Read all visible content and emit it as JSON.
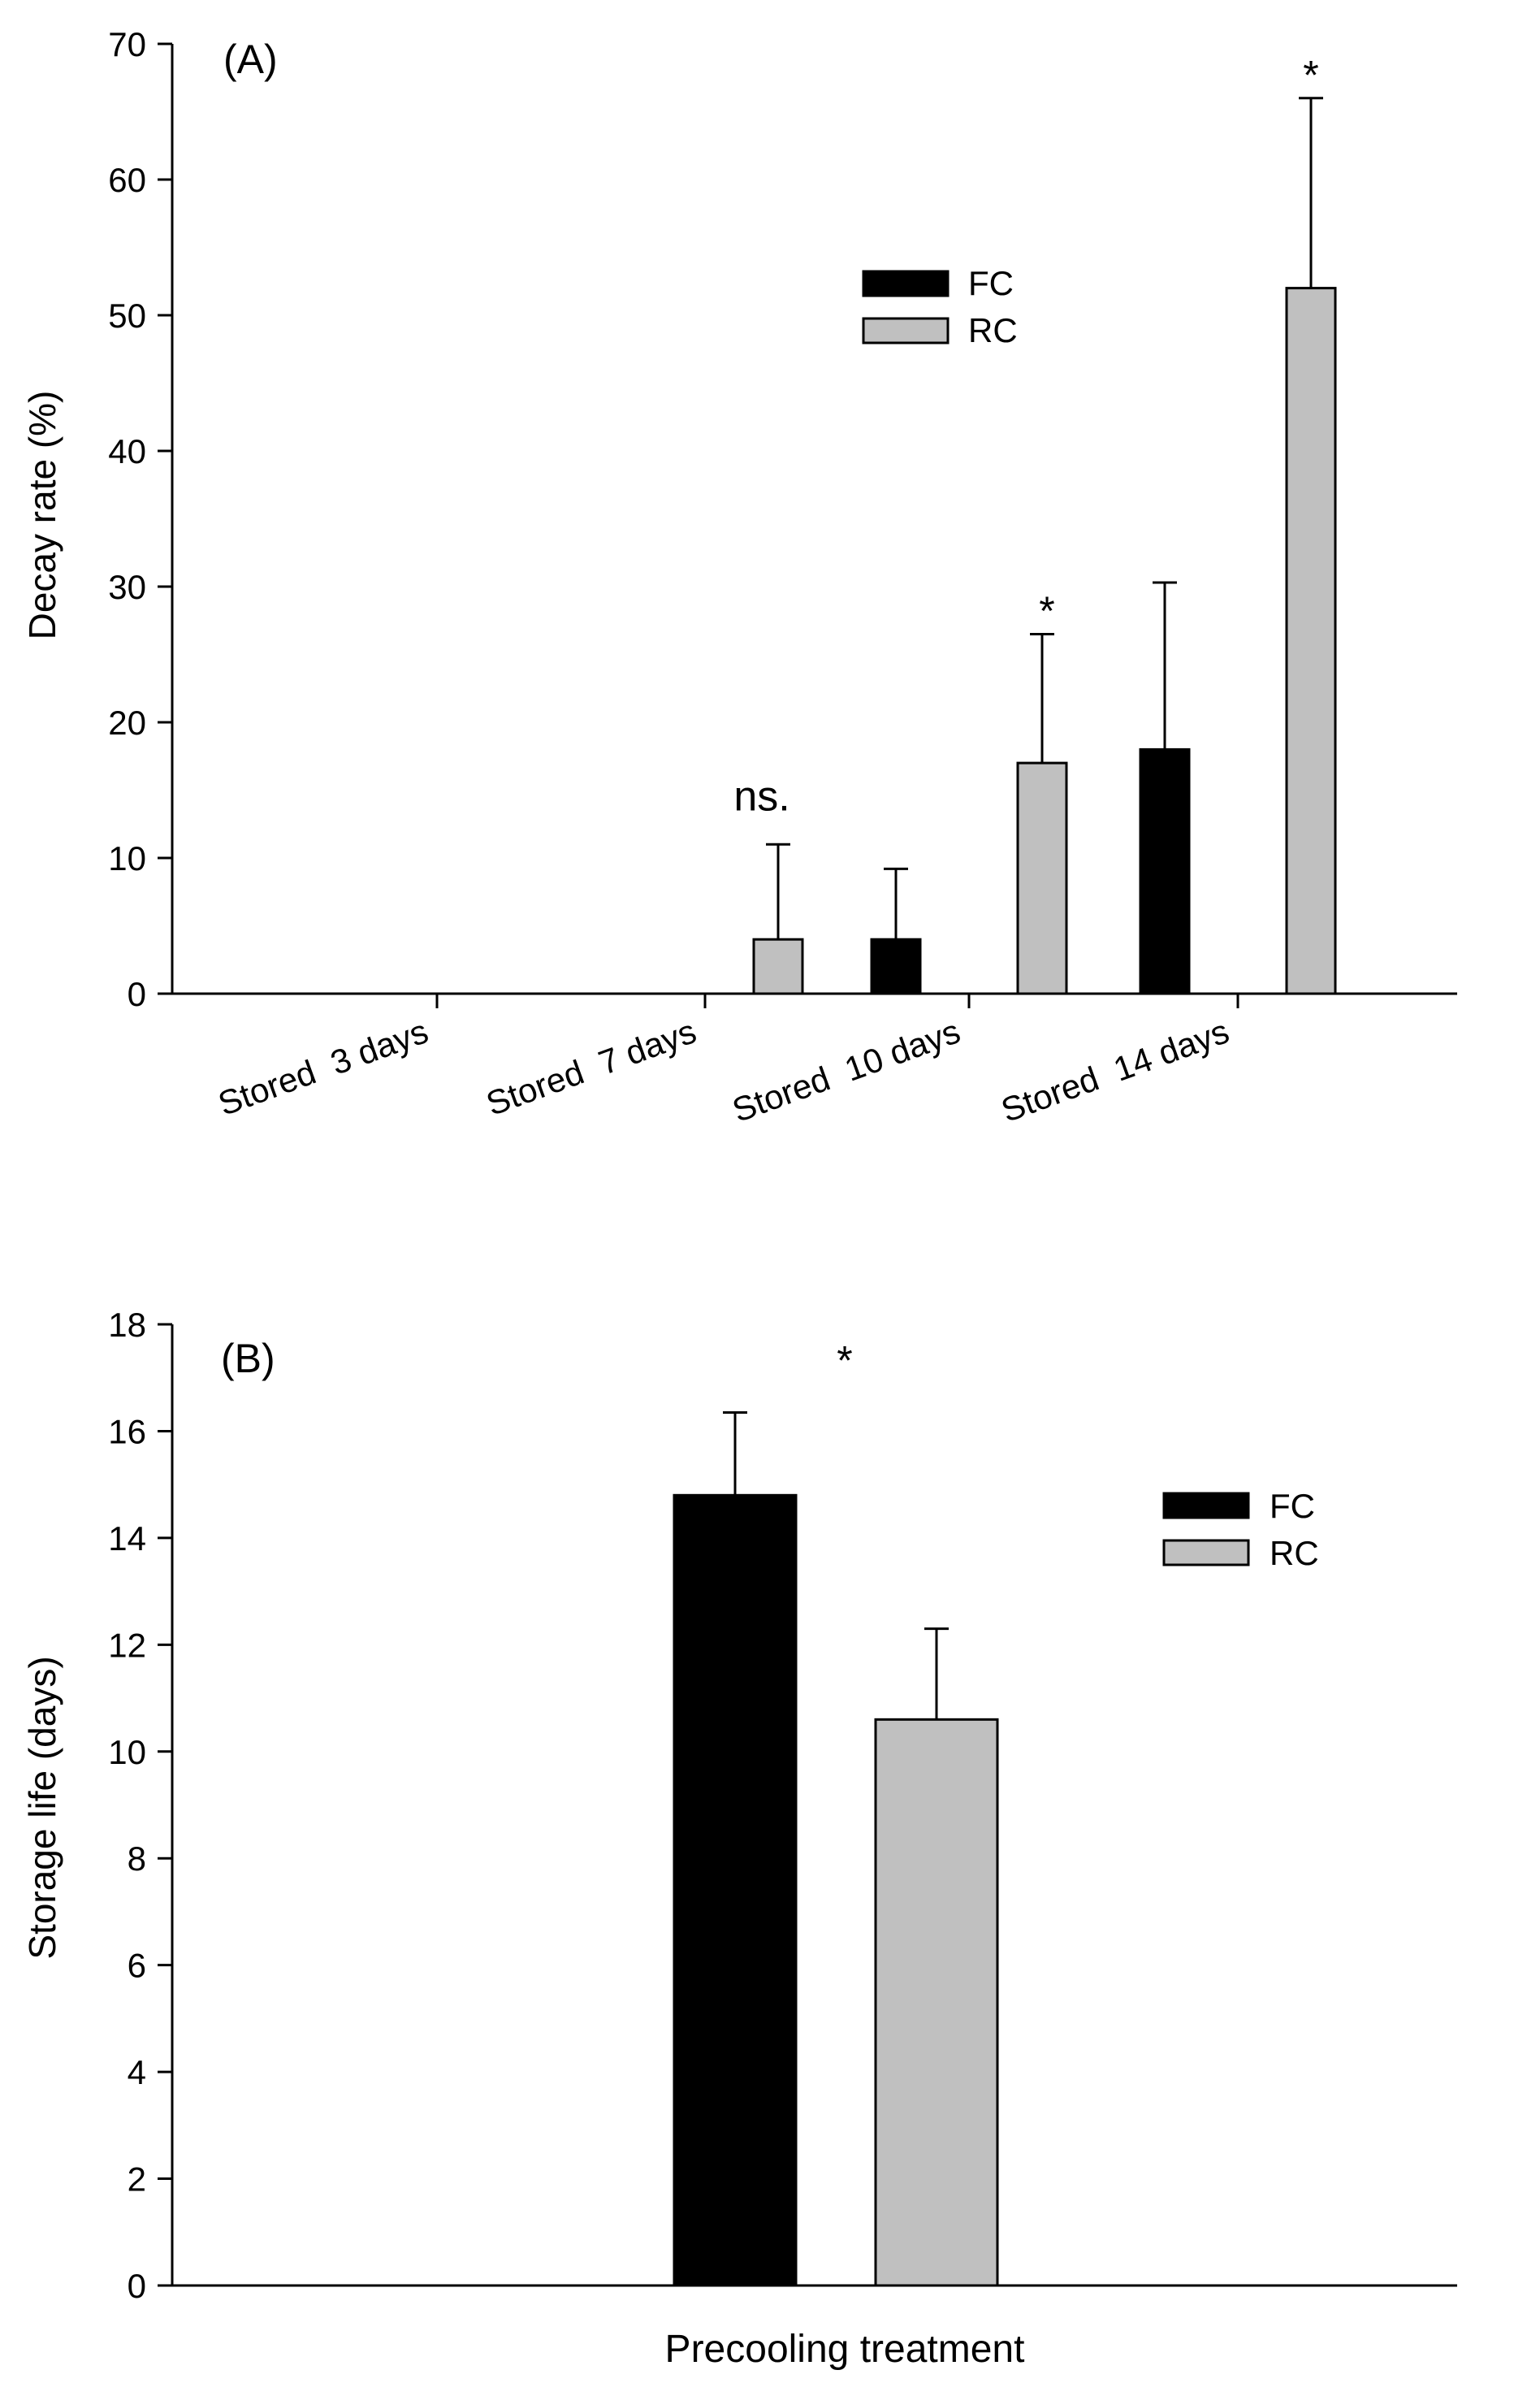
{
  "chart_data": [
    {
      "type": "bar",
      "panel_label": "(A)",
      "ylabel": "Decay rate (%)",
      "xlabel": "",
      "ylim": [
        0,
        70
      ],
      "yticks": [
        0,
        10,
        20,
        30,
        40,
        50,
        60,
        70
      ],
      "ytick_labels": [
        "0",
        "10",
        "20",
        "30",
        "40",
        "50",
        "60",
        "70"
      ],
      "categories": [
        "Stored  3 days",
        "Stored  7 days",
        "Stored  10 days",
        "Stored  14 days"
      ],
      "series": [
        {
          "name": "FC",
          "color": "#000000",
          "values": [
            0,
            0,
            4,
            18
          ],
          "errors": [
            0,
            0,
            5.2,
            12.3
          ]
        },
        {
          "name": "RC",
          "color": "#c0c0c0",
          "values": [
            0,
            4,
            17,
            52
          ],
          "errors": [
            0,
            7,
            9.5,
            14
          ]
        }
      ],
      "annotations": [
        {
          "category": "Stored  7 days",
          "text": "ns.",
          "y": 13.5
        },
        {
          "category": "Stored  10 days",
          "text": "*",
          "y": 28.5
        },
        {
          "category": "Stored  14 days",
          "text": "*",
          "y": 68
        }
      ],
      "legend": {
        "position": "upper-center",
        "entries": [
          "FC",
          "RC"
        ]
      },
      "grid": false
    },
    {
      "type": "bar",
      "panel_label": "(B)",
      "ylabel": "Storage life (days)",
      "xlabel": "Precooling treatment",
      "ylim": [
        0,
        18
      ],
      "yticks": [
        0,
        2,
        4,
        6,
        8,
        10,
        12,
        14,
        16,
        18
      ],
      "ytick_labels": [
        "0",
        "2",
        "4",
        "6",
        "8",
        "10",
        "12",
        "14",
        "16",
        "18"
      ],
      "categories": [
        "Precooling treatment"
      ],
      "series": [
        {
          "name": "FC",
          "color": "#000000",
          "values": [
            14.8
          ],
          "errors": [
            1.55
          ]
        },
        {
          "name": "RC",
          "color": "#c0c0c0",
          "values": [
            10.6
          ],
          "errors": [
            1.7
          ]
        }
      ],
      "annotations": [
        {
          "category": "Precooling treatment",
          "text": "*",
          "y": 17.4
        }
      ],
      "legend": {
        "position": "upper-right",
        "entries": [
          "FC",
          "RC"
        ]
      },
      "grid": false
    }
  ]
}
